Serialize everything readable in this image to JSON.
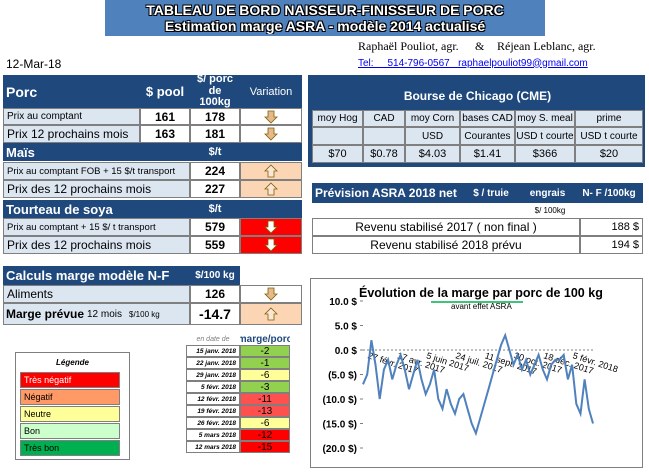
{
  "header": {
    "title": "TABLEAU DE BORD NAISSEUR-FINISSEUR DE PORC",
    "subtitle": "Estimation marge ASRA - modèle 2014 actualisé",
    "date": "12-Mar-18",
    "authors": [
      "Raphaël Pouliot, agr.",
      "&",
      "Réjean Leblanc, agr."
    ],
    "contact": "Tel:     514-796-0567   raphaelpouliot99@gmail.com"
  },
  "porc": {
    "headers": [
      "Porc",
      "$ pool",
      "$/ porc de 100kg",
      "Variation"
    ],
    "rows": [
      [
        "Prix au comptant",
        161,
        178
      ],
      [
        "Prix 12 prochains mois",
        163,
        181
      ]
    ]
  },
  "mais": {
    "headers": [
      "Maïs",
      "$/t"
    ],
    "rows": [
      [
        "Prix au comptant FOB + 15 $/t transport",
        224
      ],
      [
        "Prix des 12 prochains mois",
        227
      ]
    ]
  },
  "soya": {
    "headers": [
      "Tourteau de soya",
      "$/t"
    ],
    "rows": [
      [
        "Prix au comptant + 15 $/ t  transport",
        579
      ],
      [
        "Prix des 12 prochains mois",
        559
      ]
    ]
  },
  "calculs": {
    "headers": [
      "Calculs marge  modèle N-F",
      "$/100 kg"
    ],
    "rows": [
      [
        "Aliments",
        126
      ]
    ],
    "marge": {
      "label": "Marge prévue",
      "period": "12 mois",
      "unit": "$/100 kg",
      "value": -14.7
    }
  },
  "historique": {
    "headers": [
      "en date de",
      "marge/porc"
    ],
    "rows": [
      [
        "15 janv. 2018",
        -2
      ],
      [
        "22 janv. 2018",
        -1
      ],
      [
        "29 janv. 2018",
        -6
      ],
      [
        "5 févr. 2018",
        -3
      ],
      [
        "12 févr. 2018",
        -11
      ],
      [
        "19 févr. 2018",
        -13
      ],
      [
        "26 févr. 2018",
        -6
      ],
      [
        "5 mars 2018",
        -12
      ],
      [
        "12 mars 2018",
        -15
      ]
    ]
  },
  "legend": {
    "title": "Légende",
    "items": [
      "Très négatif",
      "Négatif",
      "Neutre",
      "Bon",
      "Très bon"
    ]
  },
  "cme": {
    "title": "Bourse de Chicago (CME)",
    "columns": [
      "moy Hog",
      "CAD",
      "moy Corn",
      "bases CAD",
      "moy S. meal",
      "prime"
    ],
    "units": [
      "USD",
      "Courantes",
      "USD t courte",
      "USD t courte"
    ],
    "values": [
      "$70",
      "$0.78",
      "$4.03",
      "$1.41",
      "$366",
      "$20"
    ]
  },
  "asra": {
    "headers": [
      "Prévision ASRA 2018 net",
      "$ / truie",
      "engrais",
      "N- F /100kg"
    ],
    "unit": "$/ 100kg",
    "rows": [
      [
        "Revenu stabilisé 2017 ( non final )",
        "188 $"
      ],
      [
        "Revenu stabilisé 2018 prévu",
        "194 $"
      ]
    ]
  },
  "chart": {
    "type": "line",
    "title": "Évolution de la marge par porc de 100 kg",
    "subtitle": "avant effet ASRA",
    "color": "#4f81bd",
    "categories": [
      null,
      "27 févr. 2017",
      null,
      null,
      null,
      null,
      null,
      null,
      "17 avr. 2017",
      null,
      null,
      null,
      null,
      null,
      null,
      "5 juin 2017",
      null,
      null,
      null,
      null,
      null,
      null,
      "24 juil. 2017",
      null,
      null,
      null,
      null,
      null,
      null,
      "11 sept. 2017",
      null,
      null,
      null,
      null,
      null,
      null,
      "30 oct. 2017",
      null,
      null,
      null,
      null,
      null,
      null,
      "18 déc. 2017",
      null,
      null,
      null,
      null,
      null,
      null,
      "5 févr. 2018",
      null,
      null,
      null,
      null,
      null
    ],
    "values": [
      -7,
      -5,
      2,
      -3,
      -10,
      -4,
      -2,
      -6,
      -3,
      -1,
      -4,
      -8,
      -5,
      -2,
      -6,
      -9,
      -7,
      -4,
      -10,
      -12,
      -8,
      -11,
      -13,
      -10,
      -9,
      -12,
      -15,
      -17,
      -14,
      -11,
      -8,
      -5,
      -2,
      1,
      3,
      0,
      -3,
      -1,
      -4,
      -2,
      -5,
      -3,
      -1,
      -4,
      -6,
      -3,
      -2,
      -2,
      -1,
      -6,
      -3,
      -11,
      -13,
      -6,
      -12,
      -15
    ],
    "ylim": [
      -20,
      10
    ],
    "yticks": [
      {
        "value": 10,
        "label": "10.0 $"
      },
      {
        "value": 5,
        "label": "5.0 $"
      },
      {
        "value": 0,
        "label": "0.0 $"
      },
      {
        "value": -5,
        "label": "(5.0 $)"
      },
      {
        "value": -10,
        "label": "(10.0 $)"
      },
      {
        "value": -15,
        "label": "(15.0 $)"
      },
      {
        "value": -20,
        "label": "(20.0 $)"
      }
    ]
  }
}
